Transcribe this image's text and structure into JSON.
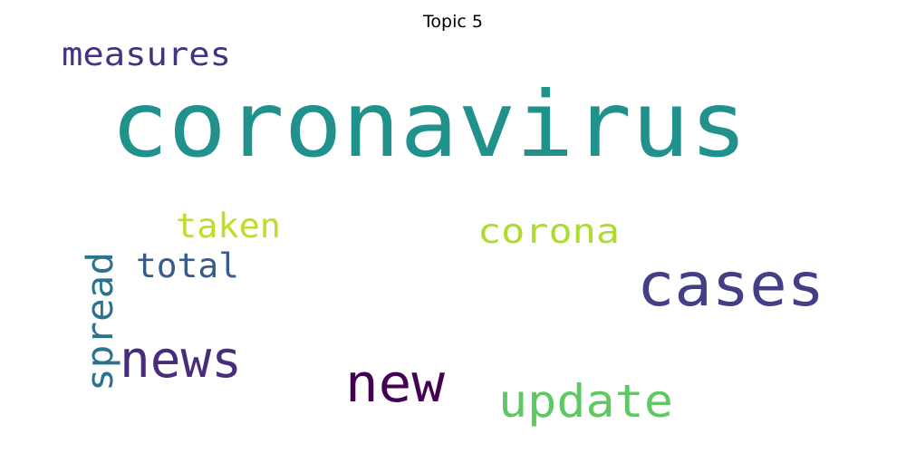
{
  "title": "Topic 5",
  "words": [
    {
      "text": "coronavirus",
      "color": "#21918c"
    },
    {
      "text": "measures",
      "color": "#46337e"
    },
    {
      "text": "taken",
      "color": "#bddf26"
    },
    {
      "text": "corona",
      "color": "#addc30"
    },
    {
      "text": "cases",
      "color": "#433e85"
    },
    {
      "text": "total",
      "color": "#365c8d"
    },
    {
      "text": "spread",
      "color": "#2c728e"
    },
    {
      "text": "news",
      "color": "#472d7b"
    },
    {
      "text": "new",
      "color": "#440154"
    },
    {
      "text": "update",
      "color": "#5ec962"
    }
  ]
}
